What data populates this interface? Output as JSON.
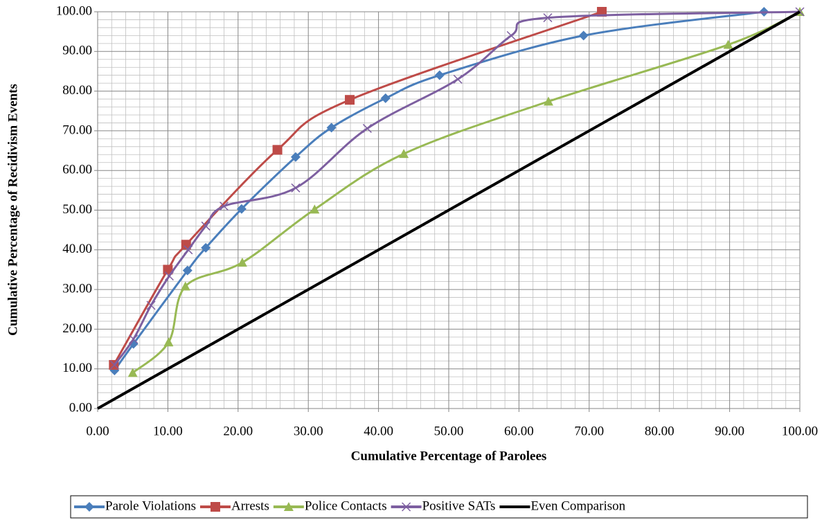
{
  "chart_data": {
    "type": "line",
    "smooth": true,
    "x_label": "Cumulative Percentage of Parolees",
    "y_label": "Cumulative Percentage of Recidivism Events",
    "xlim": [
      0,
      100
    ],
    "ylim": [
      0,
      100
    ],
    "xticks": [
      {
        "value": 0,
        "label": "0.00"
      },
      {
        "value": 10,
        "label": "10.00"
      },
      {
        "value": 20,
        "label": "20.00"
      },
      {
        "value": 30,
        "label": "30.00"
      },
      {
        "value": 40,
        "label": "40.00"
      },
      {
        "value": 50,
        "label": "50.00"
      },
      {
        "value": 60,
        "label": "60.00"
      },
      {
        "value": 70,
        "label": "70.00"
      },
      {
        "value": 80,
        "label": "80.00"
      },
      {
        "value": 90,
        "label": "90.00"
      },
      {
        "value": 100,
        "label": "100.00"
      }
    ],
    "yticks": [
      {
        "value": 0,
        "label": "0.00"
      },
      {
        "value": 10,
        "label": "10.00"
      },
      {
        "value": 20,
        "label": "20.00"
      },
      {
        "value": 30,
        "label": "30.00"
      },
      {
        "value": 40,
        "label": "40.00"
      },
      {
        "value": 50,
        "label": "50.00"
      },
      {
        "value": 60,
        "label": "60.00"
      },
      {
        "value": 70,
        "label": "70.00"
      },
      {
        "value": 80,
        "label": "80.00"
      },
      {
        "value": 90,
        "label": "90.00"
      },
      {
        "value": 100,
        "label": "100.00"
      }
    ],
    "grid": true,
    "minor_grid": true,
    "legend": "bottom",
    "series": [
      {
        "name": "Parole Violations",
        "color": "#4a7ebb",
        "marker": "diamond",
        "x": [
          2.4,
          5.1,
          12.8,
          15.4,
          20.5,
          28.2,
          33.3,
          41.0,
          48.7,
          69.2,
          94.9
        ],
        "values": [
          9.6,
          16.3,
          34.8,
          40.5,
          50.3,
          63.4,
          70.8,
          78.2,
          84.0,
          94.0,
          100.0
        ]
      },
      {
        "name": "Arrests",
        "color": "#be4b48",
        "marker": "square",
        "x": [
          2.3,
          10.0,
          12.6,
          25.6,
          35.9,
          71.8
        ],
        "values": [
          11.0,
          35.0,
          41.3,
          65.2,
          77.8,
          100.0
        ]
      },
      {
        "name": "Police Contacts",
        "color": "#98b954",
        "marker": "triangle",
        "x": [
          5.0,
          10.1,
          12.5,
          20.6,
          30.9,
          43.6,
          64.2,
          89.8,
          100.0
        ],
        "values": [
          9.0,
          16.7,
          30.8,
          36.8,
          50.2,
          64.2,
          77.4,
          91.7,
          100.0
        ]
      },
      {
        "name": "Positive SATs",
        "color": "#7d5fa0",
        "marker": "x",
        "x": [
          2.4,
          5.1,
          7.6,
          10.2,
          12.9,
          15.4,
          18.0,
          28.2,
          38.4,
          51.3,
          58.9,
          64.1,
          100.0
        ],
        "values": [
          11.0,
          17.5,
          26.0,
          33.4,
          40.0,
          46.0,
          51.0,
          55.6,
          70.6,
          83.0,
          94.0,
          98.5,
          100.0
        ]
      },
      {
        "name": "Even Comparison",
        "color": "#000000",
        "marker": "none",
        "x": [
          0,
          100
        ],
        "values": [
          0,
          100
        ]
      }
    ]
  }
}
